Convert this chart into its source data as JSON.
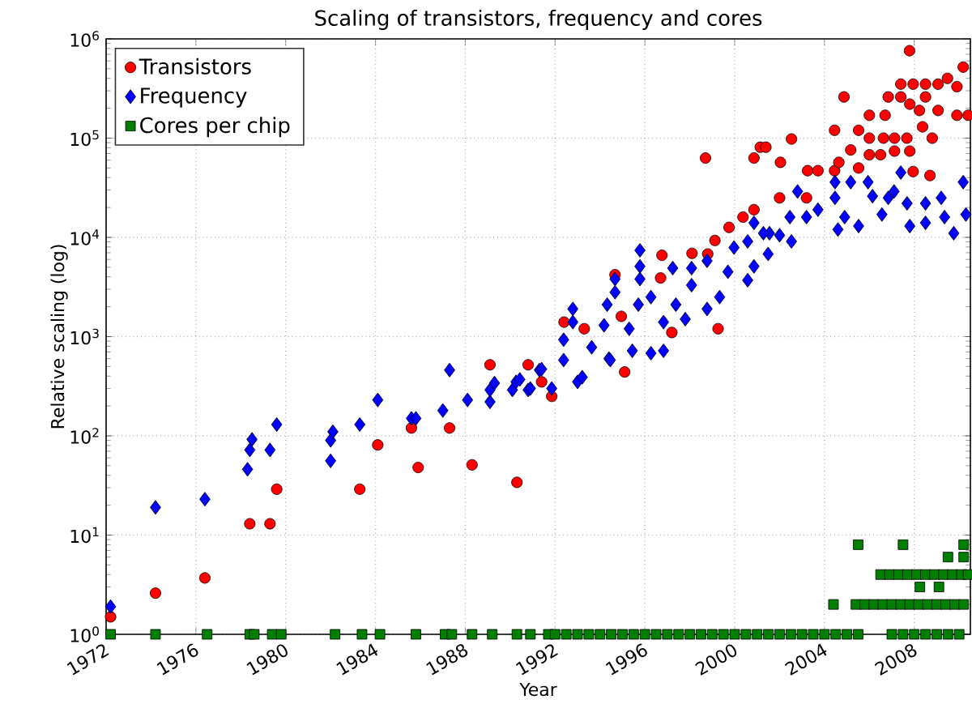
{
  "chart_data": {
    "type": "scatter",
    "title": "Scaling of transistors, frequency and cores",
    "xlabel": "Year",
    "ylabel": "Relative scaling (log)",
    "xlim": [
      1972,
      2010.5
    ],
    "xticks": [
      1972,
      1976,
      1980,
      1984,
      1988,
      1992,
      1996,
      2000,
      2004,
      2008
    ],
    "ylim": [
      1,
      1000000
    ],
    "yticks": [
      {
        "value": 1,
        "label": "10$^{0}$"
      },
      {
        "value": 10,
        "label": "10$^{1}$"
      },
      {
        "value": 100,
        "label": "10$^{2}$"
      },
      {
        "value": 1000,
        "label": "10$^{3}$"
      },
      {
        "value": 10000,
        "label": "10$^{4}$"
      },
      {
        "value": 100000,
        "label": "10$^{5}$"
      },
      {
        "value": 1000000,
        "label": "10$^{6}$"
      }
    ],
    "log": "y",
    "grid": true,
    "legend": "top left",
    "series": [
      {
        "name": "Transistors",
        "color": "#ff0000",
        "marker": "circle",
        "x": [
          1972.2,
          1974.2,
          1976.4,
          1978.4,
          1979.3,
          1979.6,
          1983.3,
          1984.1,
          1985.6,
          1985.9,
          1987.3,
          1988.3,
          1990.3,
          1989.1,
          1990.8,
          1991.4,
          1991.85,
          1995.1,
          1992.4,
          1993.3,
          1994.67,
          1994.95,
          1996.7,
          1996.76,
          1997.2,
          1998.1,
          1998.8,
          1999.12,
          1999.26,
          1998.7,
          1999.75,
          2000.37,
          2000.86,
          2000.86,
          2001.14,
          2001.39,
          2002.0,
          2002.04,
          2002.53,
          2003.2,
          2003.25,
          2003.71,
          2004.45,
          2004.45,
          2004.64,
          2004.87,
          2005.17,
          2005.52,
          2005.52,
          2006.0,
          2006.7,
          2006.0,
          2006.63,
          2007.12,
          2007.67,
          2006.0,
          2006.5,
          2007.12,
          2007.8,
          2006.84,
          2007.4,
          2007.4,
          2007.95,
          2008.5,
          2009.06,
          2009.48,
          2009.9,
          2007.8,
          2008.5,
          2008.23,
          2009.06,
          2009.9,
          2010.4,
          2008.37,
          2008.8,
          2007.95,
          2008.7,
          2007.79,
          2010.18
        ],
        "values": [
          1.5,
          2.6,
          3.7,
          13,
          13,
          29,
          29,
          81,
          120,
          48,
          120,
          51,
          34,
          520,
          520,
          350,
          250,
          440,
          1400,
          1200,
          4200,
          1600,
          3900,
          6600,
          1100,
          6900,
          6800,
          9300,
          1200,
          63000,
          12600,
          16000,
          19000,
          63000,
          81000,
          81000,
          25000,
          57000,
          98000,
          25000,
          47000,
          47000,
          47000,
          120000,
          57000,
          260000,
          76000,
          120000,
          50000,
          170000,
          170000,
          100000,
          100000,
          100000,
          100000,
          68000,
          68000,
          74000,
          74000,
          260000,
          260000,
          350000,
          350000,
          350000,
          350000,
          400000,
          330000,
          220000,
          260000,
          190000,
          190000,
          170000,
          170000,
          130000,
          100000,
          46000,
          42000,
          760000,
          520000
        ]
      },
      {
        "name": "Frequency",
        "color": "#0000ff",
        "marker": "diamond",
        "x": [
          1972.2,
          1974.2,
          1976.4,
          1978.3,
          1978.4,
          1978.5,
          1979.3,
          1979.6,
          1982.0,
          1982.0,
          1982.1,
          1983.3,
          1984.1,
          1985.6,
          1985.8,
          1987.0,
          1988.1,
          1989.1,
          1989.1,
          1990.1,
          1990.8,
          1987.3,
          1990.26,
          1990.9,
          1991.3,
          1991.85,
          1993.0,
          1994.4,
          1995.78,
          1995.78,
          1995.78,
          1994.67,
          1994.67,
          1992.79,
          1992.79,
          1992.38,
          1997.24,
          1998.08,
          1998.77,
          1998.08,
          1998.77,
          1999.33,
          2000.58,
          2000.86,
          2000.86,
          2001.49,
          2001.55,
          2002.0,
          2002.53,
          2002.46,
          2002.8,
          2003.2,
          2003.71,
          2004.47,
          2004.47,
          2004.6,
          2004.9,
          2005.52,
          2005.17,
          2005.94,
          2006.14,
          2006.56,
          2007.4,
          2007.1,
          2007.68,
          2007.8,
          2008.5,
          2008.5,
          2009.2,
          2009.76,
          2010.18,
          2010.3,
          2009.35,
          2006.84,
          1997.8,
          1996.83,
          1996.27,
          1995.44,
          1994.46,
          1993.63,
          1993.21,
          1992.38,
          1991.4,
          1990.43,
          1989.3,
          1995.71,
          1996.27,
          1996.83,
          1994.18,
          1994.32,
          1995.3,
          1997.38,
          1999.97,
          1999.7,
          2000.58,
          2001.28
        ],
        "values": [
          1.9,
          19,
          23,
          46,
          72,
          92,
          72,
          130,
          56,
          90,
          110,
          130,
          230,
          150,
          150,
          180,
          230,
          220,
          290,
          290,
          290,
          460,
          350,
          300,
          460,
          300,
          350,
          600,
          7400,
          5100,
          3800,
          2800,
          3800,
          1900,
          1400,
          930,
          4900,
          4900,
          5800,
          3300,
          1900,
          2500,
          3700,
          5100,
          14000,
          6800,
          11000,
          10500,
          9100,
          16000,
          29000,
          16000,
          19000,
          36000,
          25000,
          12000,
          16000,
          13000,
          36000,
          36000,
          26000,
          17000,
          45000,
          29000,
          22000,
          13000,
          22000,
          14000,
          25000,
          11000,
          36000,
          17000,
          16000,
          25000,
          1500,
          720,
          680,
          720,
          580,
          780,
          390,
          580,
          470,
          370,
          340,
          2100,
          2500,
          1400,
          1300,
          2100,
          1200,
          2100,
          7900,
          4500,
          9100,
          11000
        ]
      },
      {
        "name": "Cores per chip",
        "color": "#007f00",
        "marker": "square",
        "x": [
          1972.2,
          1974.2,
          1976.5,
          1978.4,
          1978.6,
          1979.4,
          1979.8,
          1982.2,
          1983.4,
          1984.2,
          1985.8,
          1987.1,
          1987.4,
          1988.3,
          1989.2,
          1990.3,
          1990.9,
          1991.7,
          1992.0,
          1992.5,
          1993.0,
          1993.5,
          1994.0,
          1994.5,
          1995.0,
          1995.5,
          1996.0,
          1996.5,
          1997.0,
          1997.5,
          1998.0,
          1998.5,
          1999.0,
          1999.5,
          2000.0,
          2000.5,
          2001.0,
          2001.5,
          2002.0,
          2002.5,
          2003.0,
          2003.5,
          2004.0,
          2004.5,
          2005.0,
          2005.5,
          2007.0,
          2007.5,
          2008.0,
          2008.5,
          2009.0,
          2009.5,
          2010.0,
          2004.4,
          2005.4,
          2005.8,
          2006.2,
          2006.6,
          2007.0,
          2007.4,
          2007.8,
          2008.2,
          2008.6,
          2009.0,
          2009.4,
          2009.8,
          2010.2,
          2006.5,
          2006.9,
          2007.3,
          2007.7,
          2008.1,
          2008.5,
          2008.9,
          2009.3,
          2009.7,
          2010.1,
          2010.4,
          2008.25,
          2009.1,
          2009.5,
          2010.2,
          2005.5,
          2007.5,
          2010.2
        ],
        "values": [
          1,
          1,
          1,
          1,
          1,
          1,
          1,
          1,
          1,
          1,
          1,
          1,
          1,
          1,
          1,
          1,
          1,
          1,
          1,
          1,
          1,
          1,
          1,
          1,
          1,
          1,
          1,
          1,
          1,
          1,
          1,
          1,
          1,
          1,
          1,
          1,
          1,
          1,
          1,
          1,
          1,
          1,
          1,
          1,
          1,
          1,
          1,
          1,
          1,
          1,
          1,
          1,
          1,
          2,
          2,
          2,
          2,
          2,
          2,
          2,
          2,
          2,
          2,
          2,
          2,
          2,
          2,
          4,
          4,
          4,
          4,
          4,
          4,
          4,
          4,
          4,
          4,
          4,
          3,
          3,
          6,
          6,
          8,
          8,
          8
        ]
      }
    ]
  }
}
